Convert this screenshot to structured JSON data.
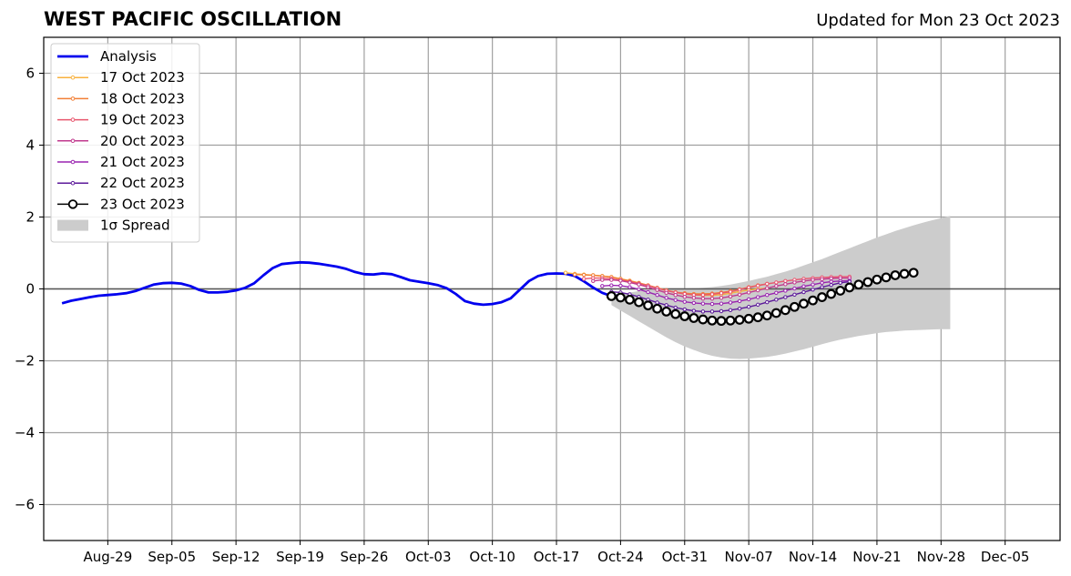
{
  "chart_data": {
    "type": "line",
    "title": "WEST PACIFIC OSCILLATION",
    "subtitle": "Updated for Mon 23 Oct 2023",
    "xlabel": "",
    "ylabel": "",
    "x_range": [
      "2023-08-22",
      "2023-12-11"
    ],
    "ylim": [
      -7,
      7
    ],
    "yticks": [
      -6,
      -4,
      -2,
      0,
      2,
      4,
      6
    ],
    "ytick_labels": [
      "−6",
      "−4",
      "−2",
      "0",
      "2",
      "4",
      "6"
    ],
    "xticks": [
      "2023-08-29",
      "2023-09-05",
      "2023-09-12",
      "2023-09-19",
      "2023-09-26",
      "2023-10-03",
      "2023-10-10",
      "2023-10-17",
      "2023-10-24",
      "2023-10-31",
      "2023-11-07",
      "2023-11-14",
      "2023-11-21",
      "2023-11-28",
      "2023-12-05"
    ],
    "xtick_labels": [
      "Aug-29",
      "Sep-05",
      "Sep-12",
      "Sep-19",
      "Sep-26",
      "Oct-03",
      "Oct-10",
      "Oct-17",
      "Oct-24",
      "Oct-31",
      "Nov-07",
      "Nov-14",
      "Nov-21",
      "Nov-28",
      "Dec-05"
    ],
    "grid": true,
    "legend_position": "top-left",
    "analysis": {
      "name": "Analysis",
      "color": "#0000ee",
      "start": "2023-08-24",
      "values": [
        -0.4,
        -0.33,
        -0.28,
        -0.23,
        -0.19,
        -0.17,
        -0.15,
        -0.12,
        -0.06,
        0.03,
        0.12,
        0.16,
        0.17,
        0.15,
        0.08,
        -0.03,
        -0.1,
        -0.1,
        -0.08,
        -0.04,
        0.03,
        0.16,
        0.38,
        0.58,
        0.69,
        0.72,
        0.74,
        0.73,
        0.7,
        0.66,
        0.62,
        0.56,
        0.47,
        0.41,
        0.4,
        0.43,
        0.41,
        0.33,
        0.24,
        0.2,
        0.16,
        0.11,
        0.02,
        -0.14,
        -0.34,
        -0.41,
        -0.44,
        -0.42,
        -0.37,
        -0.26,
        -0.02,
        0.22,
        0.36,
        0.42,
        0.43,
        0.42,
        0.36,
        0.21,
        0.04,
        -0.11,
        -0.2,
        -0.18
      ]
    },
    "forecasts": [
      {
        "name": "17 Oct 2023",
        "color": "#f8b23e",
        "start": "2023-10-18",
        "values": [
          0.45,
          0.42,
          0.4,
          0.38,
          0.36,
          0.33,
          0.28,
          0.23,
          0.17,
          0.1,
          0.03,
          -0.04,
          -0.1,
          -0.14,
          -0.17,
          -0.18,
          -0.18,
          -0.16,
          -0.12,
          -0.07,
          -0.03,
          0.0,
          0.02
        ]
      },
      {
        "name": "18 Oct 2023",
        "color": "#f27f35",
        "start": "2023-10-19",
        "values": [
          0.4,
          0.39,
          0.38,
          0.36,
          0.33,
          0.28,
          0.22,
          0.16,
          0.1,
          0.03,
          -0.04,
          -0.09,
          -0.12,
          -0.14,
          -0.14,
          -0.13,
          -0.1,
          -0.06,
          -0.01,
          0.05,
          0.1,
          0.14
        ]
      },
      {
        "name": "19 Oct 2023",
        "color": "#e8566e",
        "start": "2023-10-20",
        "values": [
          0.28,
          0.3,
          0.3,
          0.28,
          0.24,
          0.2,
          0.15,
          0.09,
          0.02,
          -0.05,
          -0.1,
          -0.14,
          -0.17,
          -0.17,
          -0.15,
          -0.12,
          -0.08,
          -0.02,
          0.04,
          0.09,
          0.14,
          0.18,
          0.22,
          0.25,
          0.28,
          0.3,
          0.32,
          0.33,
          0.34,
          0.34
        ]
      },
      {
        "name": "20 Oct 2023",
        "color": "#c13a8e",
        "start": "2023-10-21",
        "values": [
          0.22,
          0.25,
          0.25,
          0.23,
          0.18,
          0.12,
          0.05,
          -0.03,
          -0.11,
          -0.17,
          -0.22,
          -0.25,
          -0.27,
          -0.27,
          -0.25,
          -0.21,
          -0.16,
          -0.1,
          -0.04,
          0.02,
          0.08,
          0.13,
          0.18,
          0.22,
          0.25,
          0.27,
          0.29,
          0.3,
          0.3
        ]
      },
      {
        "name": "21 Oct 2023",
        "color": "#9a24b0",
        "start": "2023-10-22",
        "values": [
          0.08,
          0.1,
          0.09,
          0.05,
          -0.01,
          -0.09,
          -0.17,
          -0.25,
          -0.31,
          -0.36,
          -0.39,
          -0.41,
          -0.42,
          -0.41,
          -0.38,
          -0.34,
          -0.29,
          -0.23,
          -0.17,
          -0.11,
          -0.05,
          0.01,
          0.07,
          0.12,
          0.17,
          0.2,
          0.22,
          0.23
        ]
      },
      {
        "name": "22 Oct 2023",
        "color": "#5c1a9a",
        "start": "2023-10-23",
        "values": [
          -0.08,
          -0.1,
          -0.15,
          -0.22,
          -0.3,
          -0.38,
          -0.45,
          -0.52,
          -0.57,
          -0.61,
          -0.63,
          -0.63,
          -0.62,
          -0.59,
          -0.55,
          -0.5,
          -0.44,
          -0.37,
          -0.3,
          -0.23,
          -0.16,
          -0.09,
          -0.02,
          0.05,
          0.11,
          0.17,
          0.2
        ]
      },
      {
        "name": "23 Oct 2023",
        "color": "#000000",
        "start": "2023-10-23",
        "values": [
          -0.2,
          -0.24,
          -0.3,
          -0.37,
          -0.46,
          -0.55,
          -0.63,
          -0.7,
          -0.76,
          -0.81,
          -0.85,
          -0.88,
          -0.89,
          -0.88,
          -0.86,
          -0.83,
          -0.79,
          -0.74,
          -0.67,
          -0.59,
          -0.5,
          -0.41,
          -0.32,
          -0.23,
          -0.14,
          -0.05,
          0.04,
          0.12,
          0.19,
          0.26,
          0.32,
          0.38,
          0.42,
          0.45
        ]
      }
    ],
    "spread": {
      "name": "1σ Spread",
      "color": "#cccccc",
      "start": "2023-10-23",
      "upper": [
        -0.2,
        -0.15,
        -0.1,
        -0.06,
        -0.03,
        -0.01,
        0.0,
        0.0,
        0.01,
        0.02,
        0.03,
        0.05,
        0.08,
        0.12,
        0.17,
        0.22,
        0.28,
        0.34,
        0.41,
        0.48,
        0.56,
        0.65,
        0.74,
        0.83,
        0.93,
        1.03,
        1.13,
        1.23,
        1.33,
        1.43,
        1.52,
        1.61,
        1.69,
        1.77,
        1.84,
        1.91,
        1.97,
        2.03
      ],
      "lower": [
        -0.45,
        -0.6,
        -0.75,
        -0.9,
        -1.05,
        -1.2,
        -1.35,
        -1.48,
        -1.6,
        -1.7,
        -1.79,
        -1.86,
        -1.91,
        -1.94,
        -1.95,
        -1.94,
        -1.92,
        -1.89,
        -1.85,
        -1.8,
        -1.74,
        -1.68,
        -1.61,
        -1.54,
        -1.47,
        -1.41,
        -1.36,
        -1.31,
        -1.27,
        -1.23,
        -1.2,
        -1.18,
        -1.16,
        -1.15,
        -1.14,
        -1.13,
        -1.12,
        -1.12
      ]
    }
  }
}
